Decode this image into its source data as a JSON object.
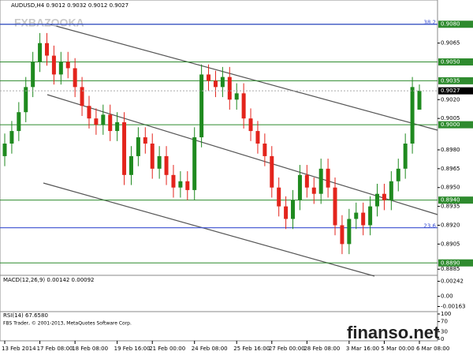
{
  "chart_data": {
    "type": "candlestick",
    "title": "AUDUSD,H4  0.9012 0.9032 0.9012 0.9027",
    "categories": [
      "13 Feb 2014",
      null,
      null,
      null,
      null,
      "17 Feb 08:00",
      null,
      null,
      null,
      null,
      "18 Feb 08:00",
      null,
      null,
      null,
      null,
      null,
      "19 Feb 16:00",
      null,
      null,
      null,
      null,
      "21 Feb 00:00",
      null,
      null,
      null,
      null,
      null,
      "24 Feb 08:00",
      null,
      null,
      null,
      null,
      null,
      "25 Feb 16:00",
      null,
      null,
      null,
      null,
      "27 Feb 00:00",
      null,
      null,
      null,
      null,
      "28 Feb 08:00",
      null,
      null,
      null,
      null,
      null,
      "3 Mar 16:00",
      null,
      null,
      null,
      null,
      "5 Mar 00:00",
      null,
      null,
      null,
      null,
      "6 Mar 08:00"
    ],
    "open": [
      0.8975,
      0.8985,
      0.8995,
      0.901,
      0.903,
      0.905,
      0.9065,
      0.9055,
      0.904,
      0.905,
      0.9045,
      0.903,
      0.9015,
      0.9005,
      0.9,
      0.9008,
      0.8995,
      0.9002,
      0.896,
      0.8975,
      0.899,
      0.8985,
      0.8965,
      0.8975,
      0.896,
      0.895,
      0.8955,
      0.8948,
      0.899,
      0.904,
      0.9035,
      0.903,
      0.9038,
      0.902,
      0.9025,
      0.9005,
      0.8995,
      0.8985,
      0.8975,
      0.895,
      0.8935,
      0.8925,
      0.894,
      0.896,
      0.895,
      0.8945,
      0.8965,
      0.895,
      0.892,
      0.8905,
      0.8925,
      0.893,
      0.892,
      0.8935,
      0.8945,
      0.894,
      0.8955,
      0.8965,
      0.8985,
      0.9012
    ],
    "high": [
      0.8993,
      0.9003,
      0.9018,
      0.9038,
      0.9058,
      0.9073,
      0.9073,
      0.9063,
      0.9058,
      0.9058,
      0.9053,
      0.9038,
      0.9023,
      0.9013,
      0.9016,
      0.9016,
      0.901,
      0.901,
      0.8983,
      0.8998,
      0.8998,
      0.8993,
      0.8983,
      0.8983,
      0.8968,
      0.8963,
      0.8963,
      0.8998,
      0.9048,
      0.9048,
      0.9043,
      0.9046,
      0.9046,
      0.9033,
      0.9033,
      0.9013,
      0.9003,
      0.8993,
      0.8983,
      0.8958,
      0.8943,
      0.8948,
      0.8968,
      0.8968,
      0.8958,
      0.8973,
      0.8973,
      0.8958,
      0.8928,
      0.8933,
      0.8938,
      0.8938,
      0.8943,
      0.8953,
      0.8953,
      0.8963,
      0.8973,
      0.8993,
      0.9038,
      0.9032
    ],
    "low": [
      0.8967,
      0.8977,
      0.8987,
      0.9002,
      0.9022,
      0.9042,
      0.9047,
      0.9032,
      0.9032,
      0.9037,
      0.9022,
      0.9007,
      0.8997,
      0.8992,
      0.8992,
      0.8987,
      0.8987,
      0.8952,
      0.8952,
      0.8967,
      0.8977,
      0.8957,
      0.8957,
      0.8952,
      0.8942,
      0.8942,
      0.894,
      0.894,
      0.8982,
      0.9027,
      0.9022,
      0.9022,
      0.9012,
      0.9012,
      0.8997,
      0.8987,
      0.8977,
      0.8967,
      0.8942,
      0.8927,
      0.8917,
      0.8917,
      0.8932,
      0.8942,
      0.8937,
      0.8937,
      0.8942,
      0.8912,
      0.8897,
      0.8897,
      0.8917,
      0.8912,
      0.8912,
      0.8927,
      0.8932,
      0.8932,
      0.8947,
      0.8957,
      0.8977,
      0.9012
    ],
    "close": [
      0.8985,
      0.8995,
      0.901,
      0.903,
      0.905,
      0.9065,
      0.9055,
      0.904,
      0.905,
      0.9045,
      0.903,
      0.9015,
      0.9005,
      0.9,
      0.9008,
      0.8995,
      0.9002,
      0.896,
      0.8975,
      0.899,
      0.8985,
      0.8965,
      0.8975,
      0.896,
      0.895,
      0.8955,
      0.8948,
      0.899,
      0.904,
      0.9035,
      0.903,
      0.9038,
      0.902,
      0.9025,
      0.9005,
      0.8995,
      0.8985,
      0.8975,
      0.895,
      0.8935,
      0.8925,
      0.894,
      0.896,
      0.895,
      0.8945,
      0.8965,
      0.895,
      0.892,
      0.8905,
      0.8925,
      0.893,
      0.892,
      0.8935,
      0.8945,
      0.894,
      0.8955,
      0.8965,
      0.8985,
      0.903,
      0.9027
    ],
    "up_color": "#1f8a1f",
    "down_color": "#e3241c",
    "ylim": [
      0.8882,
      0.9088
    ],
    "yticks": [
      {
        "value": 0.9065,
        "label": "0.9065"
      },
      {
        "value": 0.902,
        "label": "0.9020"
      },
      {
        "value": 0.9005,
        "label": "0.9005"
      },
      {
        "value": 0.898,
        "label": "0.8980"
      },
      {
        "value": 0.8965,
        "label": "0.8965"
      },
      {
        "value": 0.895,
        "label": "0.8950"
      },
      {
        "value": 0.8935,
        "label": "0.8935"
      },
      {
        "value": 0.892,
        "label": "0.8920"
      },
      {
        "value": 0.8905,
        "label": "0.8905"
      },
      {
        "value": 0.8885,
        "label": "0.8885"
      }
    ],
    "levels": [
      {
        "value": 0.908,
        "label": "0.9080"
      },
      {
        "value": 0.905,
        "label": "0.9050"
      },
      {
        "value": 0.9035,
        "label": "0.9035"
      },
      {
        "value": 0.9,
        "label": "0.9000"
      },
      {
        "value": 0.894,
        "label": "0.8940"
      },
      {
        "value": 0.889,
        "label": "0.8890"
      }
    ],
    "level_color": "#2e8b2e",
    "fib_levels": [
      {
        "value": 0.908,
        "label": "38.2"
      },
      {
        "value": 0.8918,
        "label": "23.6"
      }
    ],
    "fib_color": "#3a4fd0",
    "last_price": {
      "value": 0.9027,
      "label": "0.9027"
    },
    "macd": {
      "title": "MACD(12,26,9) 0.00142 0.00092",
      "ylim": [
        -0.0022,
        0.003
      ],
      "yticks": [
        {
          "value": 0.00242,
          "label": "0.00242"
        },
        {
          "value": 0,
          "label": "0.00"
        },
        {
          "value": -0.00163,
          "label": "-0.00163"
        }
      ]
    },
    "rsi": {
      "title": "RSI(14) 67.6580",
      "ylim": [
        0,
        100
      ],
      "yticks": [
        100,
        70,
        30,
        0
      ]
    },
    "footer": "FBS Trader, © 2001-2013, MetaQuotes Software Corp.",
    "watermarks": [
      "FXBAZOOKA",
      "finanso.net"
    ]
  }
}
